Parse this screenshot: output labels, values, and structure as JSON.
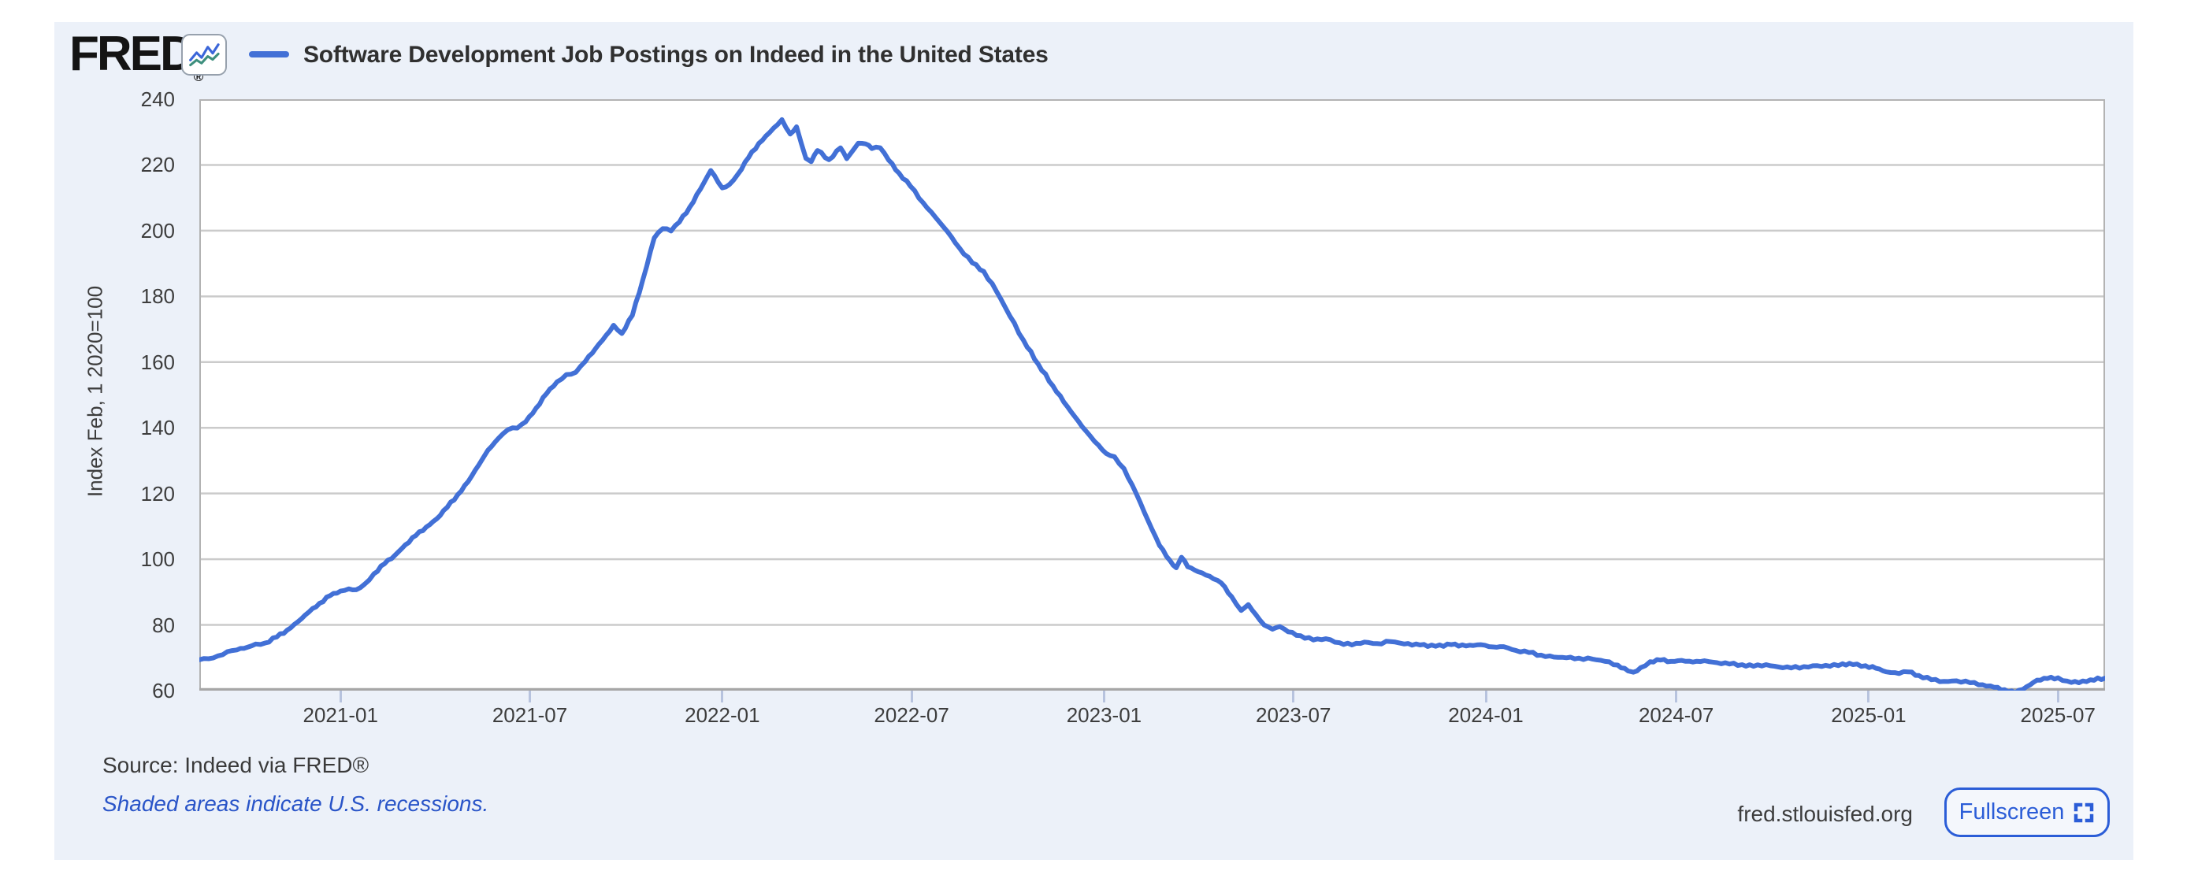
{
  "header": {
    "logo_text": "FRED",
    "logo_reg": "®",
    "sparkline_icon": "line-chart-icon"
  },
  "chart_data": {
    "type": "line",
    "title": "Software Development Job Postings on Indeed in the United States",
    "ylabel": "Index Feb, 1 2020=100",
    "ylim": [
      60,
      240
    ],
    "yticks": [
      240,
      220,
      200,
      180,
      160,
      140,
      120,
      100,
      80,
      60
    ],
    "xticks": [
      "2021-01",
      "2021-07",
      "2022-01",
      "2022-07",
      "2023-01",
      "2023-07",
      "2024-01",
      "2024-07",
      "2025-01",
      "2025-07"
    ],
    "x_start": "2020-08-19",
    "x_end": "2025-08-15",
    "grid": true,
    "legend_position": "top-left",
    "series_name": "Software Development Job Postings on Indeed in the United States",
    "series_color": "#4270d6",
    "points": [
      [
        "2020-08-19",
        69.4
      ],
      [
        "2020-08-28",
        69.7
      ],
      [
        "2020-09-06",
        70.6
      ],
      [
        "2020-09-15",
        71.9
      ],
      [
        "2020-09-24",
        72.4
      ],
      [
        "2020-10-04",
        73.2
      ],
      [
        "2020-10-12",
        74.2
      ],
      [
        "2020-10-21",
        74.5
      ],
      [
        "2020-11-01",
        76.3
      ],
      [
        "2020-11-11",
        78.4
      ],
      [
        "2020-11-21",
        80.9
      ],
      [
        "2020-12-02",
        84.0
      ],
      [
        "2020-12-12",
        86.6
      ],
      [
        "2020-12-22",
        88.9
      ],
      [
        "2021-01-01",
        90.3
      ],
      [
        "2021-01-09",
        91.0
      ],
      [
        "2021-01-16",
        90.7
      ],
      [
        "2021-01-24",
        92.4
      ],
      [
        "2021-02-02",
        95.6
      ],
      [
        "2021-02-12",
        98.6
      ],
      [
        "2021-02-22",
        101.2
      ],
      [
        "2021-03-04",
        104.4
      ],
      [
        "2021-03-14",
        107.2
      ],
      [
        "2021-03-24",
        109.8
      ],
      [
        "2021-04-03",
        112.3
      ],
      [
        "2021-04-13",
        115.8
      ],
      [
        "2021-04-23",
        119.6
      ],
      [
        "2021-05-03",
        123.6
      ],
      [
        "2021-05-13",
        128.6
      ],
      [
        "2021-05-22",
        133.2
      ],
      [
        "2021-06-01",
        136.8
      ],
      [
        "2021-06-10",
        139.4
      ],
      [
        "2021-06-19",
        139.9
      ],
      [
        "2021-06-27",
        141.8
      ],
      [
        "2021-07-07",
        146.0
      ],
      [
        "2021-07-17",
        150.4
      ],
      [
        "2021-07-27",
        154.0
      ],
      [
        "2021-08-05",
        156.2
      ],
      [
        "2021-08-14",
        156.9
      ],
      [
        "2021-08-23",
        160.2
      ],
      [
        "2021-09-02",
        164.2
      ],
      [
        "2021-09-12",
        168.2
      ],
      [
        "2021-09-19",
        171.2
      ],
      [
        "2021-09-27",
        168.7
      ],
      [
        "2021-10-07",
        174.2
      ],
      [
        "2021-10-17",
        185.0
      ],
      [
        "2021-10-28",
        197.8
      ],
      [
        "2021-11-05",
        200.6
      ],
      [
        "2021-11-13",
        199.9
      ],
      [
        "2021-11-21",
        202.6
      ],
      [
        "2021-12-01",
        207.2
      ],
      [
        "2021-12-11",
        212.6
      ],
      [
        "2021-12-21",
        218.3
      ],
      [
        "2022-01-01",
        213.0
      ],
      [
        "2022-01-08",
        214.1
      ],
      [
        "2022-01-16",
        217.2
      ],
      [
        "2022-01-26",
        222.2
      ],
      [
        "2022-02-05",
        226.6
      ],
      [
        "2022-02-15",
        229.8
      ],
      [
        "2022-02-27",
        233.8
      ],
      [
        "2022-03-07",
        229.4
      ],
      [
        "2022-03-13",
        231.6
      ],
      [
        "2022-03-22",
        222.0
      ],
      [
        "2022-03-27",
        221.0
      ],
      [
        "2022-04-02",
        224.4
      ],
      [
        "2022-04-13",
        221.6
      ],
      [
        "2022-04-24",
        225.2
      ],
      [
        "2022-04-30",
        221.9
      ],
      [
        "2022-05-11",
        226.6
      ],
      [
        "2022-05-18",
        226.4
      ],
      [
        "2022-05-24",
        225.0
      ],
      [
        "2022-06-01",
        225.2
      ],
      [
        "2022-06-09",
        221.5
      ],
      [
        "2022-06-19",
        217.5
      ],
      [
        "2022-06-30",
        213.5
      ],
      [
        "2022-07-12",
        208.5
      ],
      [
        "2022-07-24",
        204.0
      ],
      [
        "2022-08-04",
        199.8
      ],
      [
        "2022-08-16",
        194.6
      ],
      [
        "2022-08-28",
        190.2
      ],
      [
        "2022-09-08",
        187.6
      ],
      [
        "2022-09-20",
        181.6
      ],
      [
        "2022-10-03",
        174.0
      ],
      [
        "2022-10-16",
        166.6
      ],
      [
        "2022-10-30",
        159.4
      ],
      [
        "2022-11-13",
        152.8
      ],
      [
        "2022-11-27",
        146.4
      ],
      [
        "2022-12-11",
        140.4
      ],
      [
        "2022-12-23",
        135.8
      ],
      [
        "2023-01-03",
        132.2
      ],
      [
        "2023-01-11",
        131.2
      ],
      [
        "2023-01-20",
        127.6
      ],
      [
        "2023-02-01",
        119.8
      ],
      [
        "2023-02-12",
        111.8
      ],
      [
        "2023-02-23",
        104.2
      ],
      [
        "2023-03-05",
        99.6
      ],
      [
        "2023-03-11",
        97.4
      ],
      [
        "2023-03-16",
        100.6
      ],
      [
        "2023-03-22",
        97.7
      ],
      [
        "2023-04-01",
        96.2
      ],
      [
        "2023-04-12",
        94.8
      ],
      [
        "2023-04-23",
        92.8
      ],
      [
        "2023-05-03",
        88.6
      ],
      [
        "2023-05-12",
        84.4
      ],
      [
        "2023-05-19",
        86.2
      ],
      [
        "2023-05-26",
        83.2
      ],
      [
        "2023-06-03",
        80.0
      ],
      [
        "2023-06-11",
        78.7
      ],
      [
        "2023-06-18",
        79.5
      ],
      [
        "2023-06-26",
        77.9
      ],
      [
        "2023-07-08",
        76.7
      ],
      [
        "2023-07-20",
        75.4
      ],
      [
        "2023-08-01",
        75.8
      ],
      [
        "2023-08-14",
        74.6
      ],
      [
        "2023-08-26",
        73.9
      ],
      [
        "2023-09-07",
        74.8
      ],
      [
        "2023-09-19",
        74.3
      ],
      [
        "2023-10-02",
        74.9
      ],
      [
        "2023-10-15",
        74.2
      ],
      [
        "2023-10-30",
        73.9
      ],
      [
        "2023-11-14",
        73.5
      ],
      [
        "2023-11-29",
        74.0
      ],
      [
        "2023-12-13",
        73.6
      ],
      [
        "2023-12-27",
        74.0
      ],
      [
        "2024-01-08",
        73.3
      ],
      [
        "2024-01-18",
        73.4
      ],
      [
        "2024-01-30",
        72.2
      ],
      [
        "2024-02-11",
        71.6
      ],
      [
        "2024-02-23",
        70.8
      ],
      [
        "2024-03-06",
        70.2
      ],
      [
        "2024-03-18",
        70.0
      ],
      [
        "2024-03-30",
        69.9
      ],
      [
        "2024-04-12",
        69.6
      ],
      [
        "2024-04-24",
        68.9
      ],
      [
        "2024-05-06",
        67.8
      ],
      [
        "2024-05-16",
        66.0
      ],
      [
        "2024-05-21",
        65.6
      ],
      [
        "2024-05-28",
        67.0
      ],
      [
        "2024-06-06",
        68.8
      ],
      [
        "2024-06-16",
        69.3
      ],
      [
        "2024-06-26",
        68.9
      ],
      [
        "2024-07-06",
        69.2
      ],
      [
        "2024-07-17",
        68.7
      ],
      [
        "2024-07-28",
        69.1
      ],
      [
        "2024-08-09",
        68.5
      ],
      [
        "2024-08-21",
        68.1
      ],
      [
        "2024-09-02",
        67.9
      ],
      [
        "2024-09-13",
        67.4
      ],
      [
        "2024-09-25",
        67.9
      ],
      [
        "2024-10-07",
        67.2
      ],
      [
        "2024-10-19",
        66.9
      ],
      [
        "2024-10-31",
        67.3
      ],
      [
        "2024-11-13",
        67.6
      ],
      [
        "2024-11-25",
        67.4
      ],
      [
        "2024-12-07",
        68.2
      ],
      [
        "2024-12-17",
        67.9
      ],
      [
        "2024-12-29",
        67.6
      ],
      [
        "2025-01-08",
        66.8
      ],
      [
        "2025-01-18",
        65.7
      ],
      [
        "2025-01-30",
        65.2
      ],
      [
        "2025-02-08",
        65.7
      ],
      [
        "2025-02-18",
        64.6
      ],
      [
        "2025-03-02",
        63.3
      ],
      [
        "2025-03-14",
        62.8
      ],
      [
        "2025-03-26",
        63.0
      ],
      [
        "2025-04-08",
        62.4
      ],
      [
        "2025-04-20",
        61.8
      ],
      [
        "2025-05-01",
        61.0
      ],
      [
        "2025-05-11",
        60.3
      ],
      [
        "2025-05-21",
        59.3
      ],
      [
        "2025-06-01",
        61.2
      ],
      [
        "2025-06-11",
        63.2
      ],
      [
        "2025-06-21",
        63.7
      ],
      [
        "2025-07-01",
        63.9
      ],
      [
        "2025-07-10",
        62.9
      ],
      [
        "2025-07-21",
        62.4
      ],
      [
        "2025-08-01",
        63.3
      ],
      [
        "2025-08-15",
        63.8
      ]
    ]
  },
  "footer": {
    "source": "Source: Indeed via FRED®",
    "recession_note": "Shaded areas indicate U.S. recessions.",
    "site": "fred.stlouisfed.org",
    "fullscreen_label": "Fullscreen"
  },
  "colors": {
    "panel_bg": "#ecf1f9",
    "plot_bg": "#ffffff",
    "series": "#4270d6",
    "grid": "#cbcbcb",
    "plot_border": "#b3b3b3",
    "axis_bottom": "#a6a6a6",
    "tick_mark": "#b7c3de",
    "ui_blue": "#2b5dd7",
    "link_blue": "#2a55c8",
    "text_dark": "#303030",
    "text_axis": "#3d3d3d"
  }
}
